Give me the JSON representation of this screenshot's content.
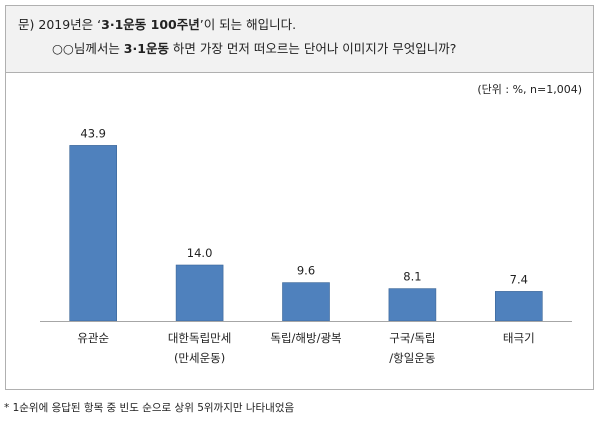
{
  "question": {
    "prefix": "문)",
    "line1_before": "2019년은 ‘",
    "line1_emph": "3·1운동 100주년",
    "line1_after": "’이 되는 해입니다.",
    "line2_before": "○○님께서는 ",
    "line2_emph": "3·1운동",
    "line2_after": " 하면 가장 먼저 떠오르는 단어나 이미지가 무엇입니까?"
  },
  "unit_note": "(단위 : %, n=1,004)",
  "footnote": "* 1순위에 응답된 항목 중 빈도 순으로 상위 5위까지만 나타내었음",
  "colors": {
    "bar": "#4f81bd",
    "bar_edge": "#3a6496",
    "axis": "#a6a6a6"
  },
  "chart_data": {
    "type": "bar",
    "categories": [
      [
        "유관순"
      ],
      [
        "대한독립만세",
        "(만세운동)"
      ],
      [
        "독립/해방/광복"
      ],
      [
        "구국/독립",
        "/항일운동"
      ],
      [
        "태극기"
      ]
    ],
    "values": [
      43.9,
      14.0,
      9.6,
      8.1,
      7.4
    ],
    "value_labels": [
      "43.9",
      "14.0",
      "9.6",
      "8.1",
      "7.4"
    ],
    "title": "",
    "xlabel": "",
    "ylabel": "",
    "ylim": [
      0,
      50
    ],
    "grid": false,
    "legend": "none"
  }
}
